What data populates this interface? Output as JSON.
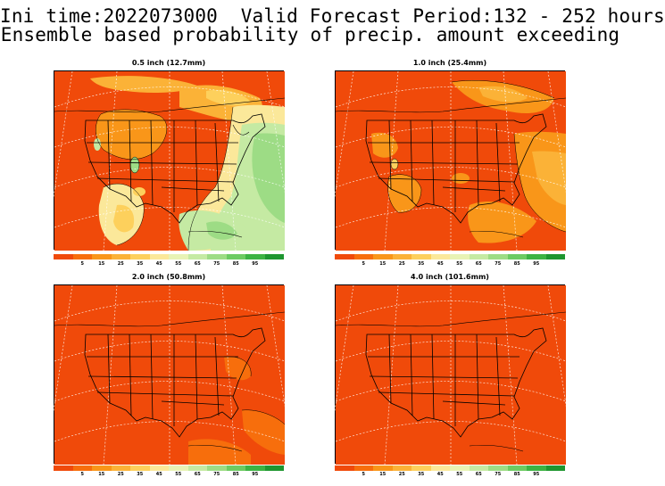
{
  "header": {
    "line1": "Ini time:2022073000  Valid Forecast Period:132 - 252 hours",
    "line2": "Ensemble based probability of precip. amount exceeding"
  },
  "panels": [
    {
      "title": "0.5 inch (12.7mm)"
    },
    {
      "title": "1.0 inch (25.4mm)"
    },
    {
      "title": "2.0 inch (50.8mm)"
    },
    {
      "title": "4.0 inch (101.6mm)"
    }
  ],
  "colorbar": {
    "colors": [
      "#f04a0a",
      "#f76e0c",
      "#f99619",
      "#fbb237",
      "#fdd05c",
      "#fbe89a",
      "#e8f3b5",
      "#c5eaa3",
      "#9ddc85",
      "#6ccb62",
      "#3cb343",
      "#1e9630"
    ],
    "labels": [
      "5",
      "15",
      "25",
      "35",
      "45",
      "55",
      "65",
      "75",
      "85",
      "95"
    ]
  },
  "colors": {
    "base_red": "#f04a0a",
    "orange": "#f99619",
    "light_orange": "#fbb237",
    "yellow": "#fdd05c",
    "pale_yellow": "#fbe89a",
    "pale_green": "#e8f3b5",
    "light_green": "#c5eaa3",
    "green": "#9ddc85",
    "dark_green": "#3cb343"
  }
}
